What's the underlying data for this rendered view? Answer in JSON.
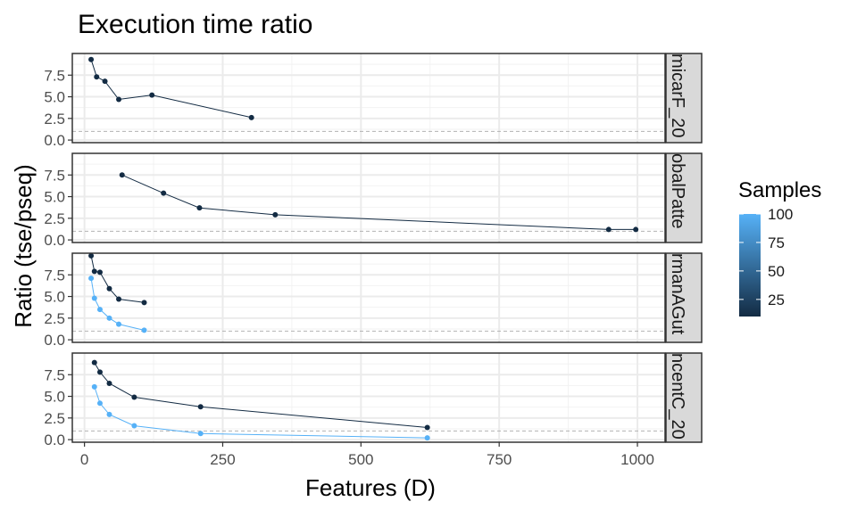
{
  "chart_data": {
    "type": "line",
    "title": "Execution time ratio",
    "xlabel": "Features (D)",
    "ylabel": "Ratio (tse/pseq)",
    "xlim": [
      -22,
      1050
    ],
    "ylim": [
      -0.3,
      10.0
    ],
    "x_ticks": [
      0,
      250,
      500,
      750,
      1000
    ],
    "x_tick_labels": [
      "0",
      "250",
      "500",
      "750",
      "1000"
    ],
    "y_ticks": [
      0,
      2.5,
      5,
      7.5
    ],
    "y_tick_labels": [
      "0.0",
      "2.5",
      "5.0",
      "7.5"
    ],
    "reference_line": 1,
    "grid": true,
    "legend": {
      "title": "Samples",
      "position": "right",
      "type": "colorbar",
      "range": [
        10,
        100
      ],
      "ticks": [
        25,
        50,
        75,
        100
      ],
      "tick_labels": [
        "25",
        "50",
        "75",
        "100"
      ],
      "color_low": "#132B43",
      "color_high": "#56B1F7"
    },
    "panels": [
      {
        "strip_label": "micarF_20",
        "series": [
          {
            "samples": 10,
            "color": "#132B43",
            "x": [
              12,
              22,
              37,
              62,
              122,
              302
            ],
            "y": [
              9.3,
              7.3,
              6.8,
              4.7,
              5.2,
              2.6
            ]
          }
        ]
      },
      {
        "strip_label": "obalPatte",
        "series": [
          {
            "samples": 10,
            "color": "#132B43",
            "x": [
              68,
              143,
              208,
              345,
              948,
              997
            ],
            "y": [
              7.5,
              5.4,
              3.7,
              2.9,
              1.2,
              1.2
            ]
          }
        ]
      },
      {
        "strip_label": "rmanAGut",
        "series": [
          {
            "samples": 10,
            "color": "#132B43",
            "x": [
              12,
              18,
              28,
              45,
              62,
              108
            ],
            "y": [
              9.7,
              7.9,
              7.8,
              5.9,
              4.7,
              4.3
            ]
          },
          {
            "samples": 100,
            "color": "#56B1F7",
            "x": [
              12,
              18,
              28,
              45,
              62,
              108
            ],
            "y": [
              7.1,
              4.8,
              3.5,
              2.5,
              1.8,
              1.1
            ]
          }
        ]
      },
      {
        "strip_label": "ncentC_20",
        "series": [
          {
            "samples": 10,
            "color": "#132B43",
            "x": [
              18,
              28,
              45,
              90,
              210,
              620
            ],
            "y": [
              8.9,
              7.8,
              6.5,
              4.9,
              3.8,
              1.4
            ]
          },
          {
            "samples": 100,
            "color": "#56B1F7",
            "x": [
              18,
              28,
              45,
              90,
              210,
              620
            ],
            "y": [
              6.1,
              4.2,
              2.9,
              1.6,
              0.7,
              0.2
            ]
          }
        ]
      }
    ]
  }
}
